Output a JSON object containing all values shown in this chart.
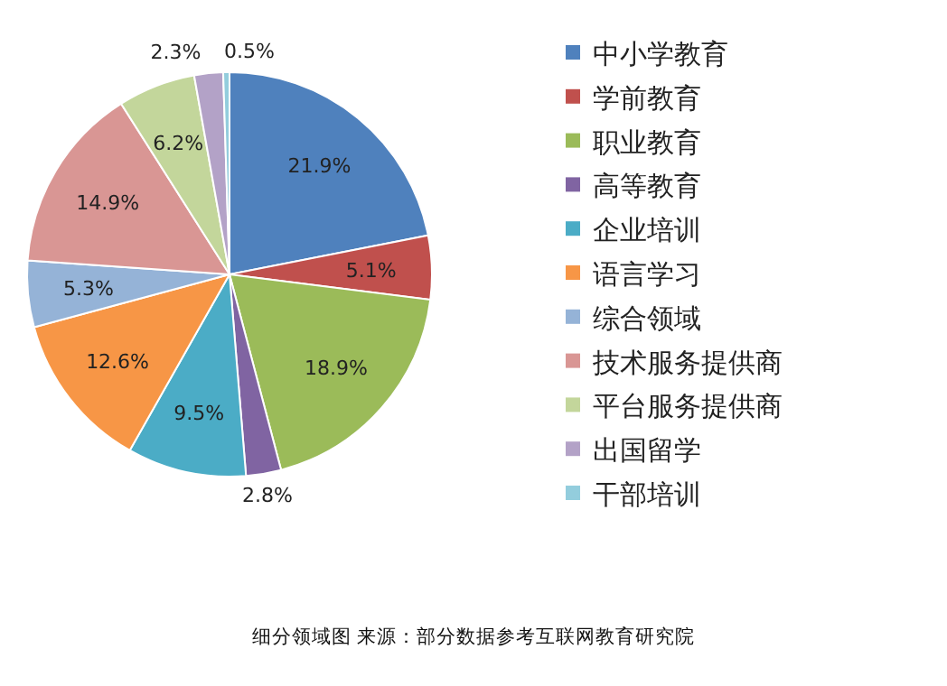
{
  "chart_data": {
    "type": "pie",
    "categories": [
      "中小学教育",
      "学前教育",
      "职业教育",
      "高等教育",
      "企业培训",
      "语言学习",
      "综合领域",
      "技术服务提供商",
      "平台服务提供商",
      "出国留学",
      "干部培训"
    ],
    "values": [
      21.9,
      5.1,
      18.9,
      2.8,
      9.5,
      12.6,
      5.3,
      14.9,
      6.2,
      2.3,
      0.5
    ],
    "colors": [
      "#4f81bd",
      "#c0504d",
      "#9bbb59",
      "#8064a2",
      "#4bacc6",
      "#f79646",
      "#95b3d7",
      "#d99694",
      "#c3d69b",
      "#b3a2c7",
      "#93cddd"
    ],
    "value_labels": [
      "21.9%",
      "5.1%",
      "18.9%",
      "2.8%",
      "9.5%",
      "12.6%",
      "5.3%",
      "14.9%",
      "6.2%",
      "2.3%",
      "0.5%"
    ],
    "legend": "right",
    "annotations": [
      "细分领域图  来源：部分数据参考互联网教育研究院"
    ]
  }
}
